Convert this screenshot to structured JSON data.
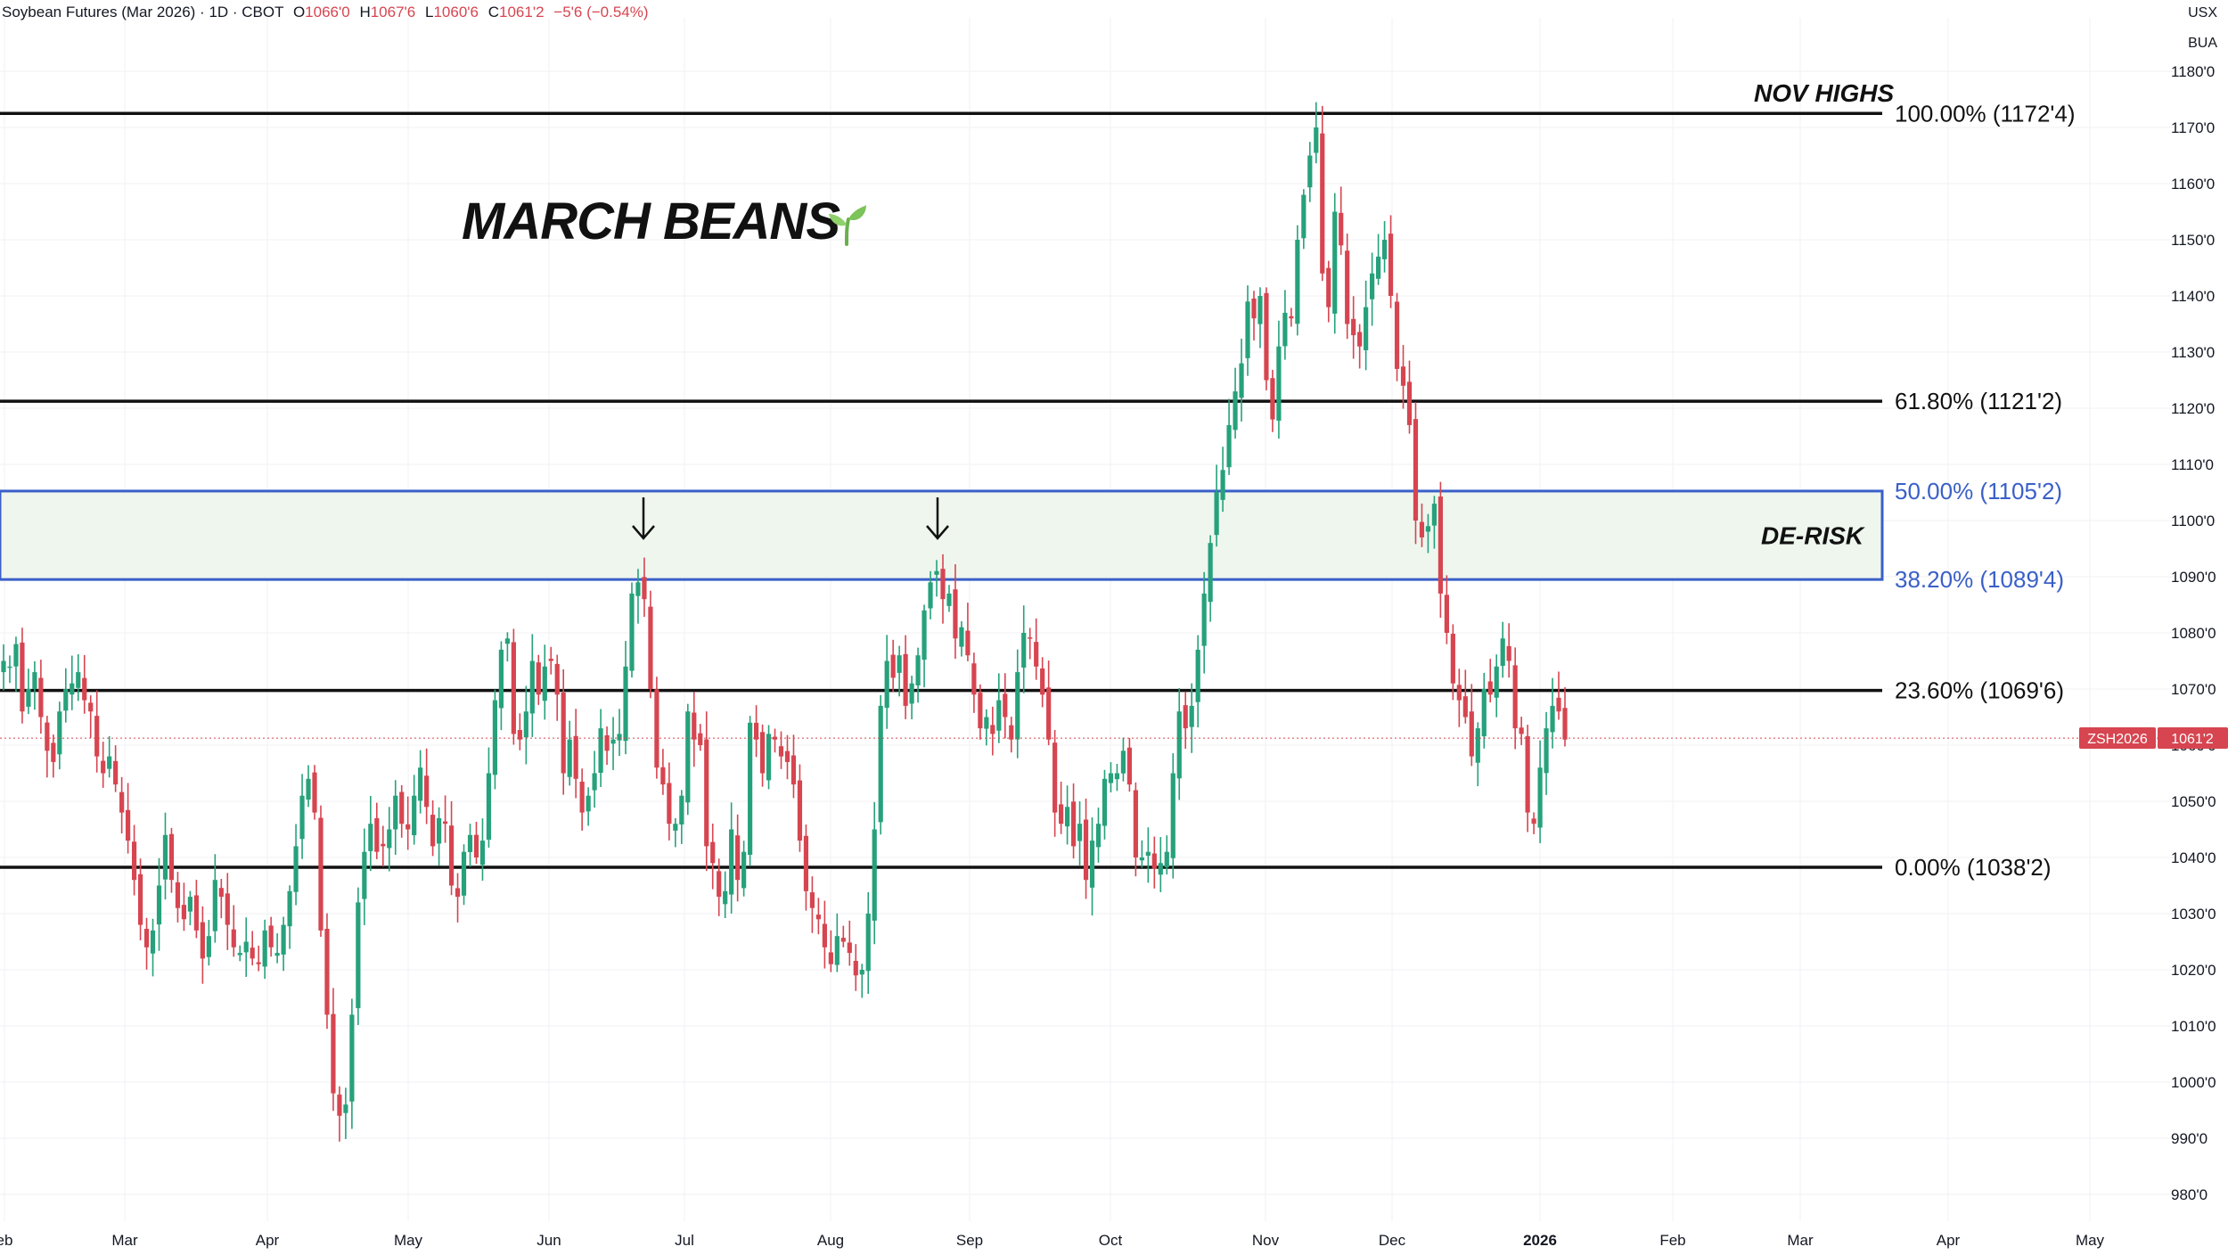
{
  "header": {
    "symbol": "Soybean Futures (Mar 2026) · 1D · CBOT",
    "open_label": "O",
    "open": "1066'0",
    "high_label": "H",
    "high": "1067'6",
    "low_label": "L",
    "low": "1060'6",
    "close_label": "C",
    "close": "1061'2",
    "change": "−5'6 (−0.54%)"
  },
  "currency": "USX",
  "unit": "BUA",
  "title": "MARCH BEANS",
  "price_tag": {
    "symbol": "ZSH2026",
    "value": "1061'2"
  },
  "colors": {
    "up": "#26a17b",
    "down": "#d64550",
    "zone_fill": "#eef6ee",
    "zone_border": "#3a5fc8",
    "fib_line": "#111111",
    "fib_blue_text": "#3a5fc8"
  },
  "chart_data": {
    "type": "candlestick",
    "ylim": [
      975,
      1185
    ],
    "y_ticks": [
      980,
      990,
      1000,
      1010,
      1020,
      1030,
      1040,
      1050,
      1060,
      1070,
      1080,
      1090,
      1100,
      1110,
      1120,
      1130,
      1140,
      1150,
      1160,
      1170,
      1180
    ],
    "y_tick_labels": [
      "980'0",
      "990'0",
      "1000'0",
      "1010'0",
      "1020'0",
      "1030'0",
      "1040'0",
      "1050'0",
      "1060'0",
      "1070'0",
      "1080'0",
      "1090'0",
      "1100'0",
      "1110'0",
      "1120'0",
      "1130'0",
      "1140'0",
      "1150'0",
      "1160'0",
      "1170'0",
      "1180'0"
    ],
    "x_labels": [
      "eb",
      "Mar",
      "Apr",
      "May",
      "Jun",
      "Jul",
      "Aug",
      "Sep",
      "Oct",
      "Nov",
      "Dec",
      "2026",
      "Feb",
      "Mar",
      "Apr",
      "May"
    ],
    "grid": true,
    "current_price": 1061.25,
    "fib_levels": [
      {
        "level": 1172.5,
        "label": "100.00% (1172'4)",
        "style": "black"
      },
      {
        "level": 1121.25,
        "label": "61.80% (1121'2)",
        "style": "black"
      },
      {
        "level": 1105.25,
        "label": "50.00% (1105'2)",
        "style": "blue"
      },
      {
        "level": 1089.5,
        "label": "38.20% (1089'4)",
        "style": "blue"
      },
      {
        "level": 1069.75,
        "label": "23.60% (1069'6)",
        "style": "black"
      },
      {
        "level": 1038.25,
        "label": "0.00% (1038'2)",
        "style": "black"
      }
    ],
    "zone": {
      "from": 1089.5,
      "to": 1105.25,
      "label": "DE-RISK"
    },
    "annotations": [
      {
        "text": "NOV HIGHS"
      }
    ],
    "arrows_at": [
      1094,
      1092
    ],
    "closes": [
      1075,
      1074,
      1078,
      1066,
      1070,
      1073,
      1065,
      1059,
      1057,
      1066,
      1070,
      1071,
      1073,
      1068,
      1066,
      1058,
      1055,
      1058,
      1053,
      1048,
      1043,
      1036,
      1028,
      1024,
      1027,
      1035,
      1044,
      1036,
      1031,
      1029,
      1033,
      1027,
      1022,
      1026,
      1036,
      1033,
      1028,
      1024,
      1023,
      1025,
      1022,
      1021,
      1027,
      1024,
      1023,
      1028,
      1034,
      1042,
      1051,
      1054,
      1048,
      1027,
      1012,
      998,
      994,
      996,
      1012,
      1032,
      1041,
      1046,
      1041,
      1042,
      1045,
      1051,
      1046,
      1045,
      1051,
      1056,
      1049,
      1042,
      1047,
      1046,
      1035,
      1033,
      1041,
      1044,
      1040,
      1043,
      1055,
      1068,
      1077,
      1079,
      1062,
      1061,
      1066,
      1075,
      1069,
      1074,
      1075,
      1069,
      1055,
      1061,
      1054,
      1048,
      1051,
      1055,
      1063,
      1059,
      1061,
      1062,
      1074,
      1087,
      1089,
      1086,
      1070,
      1056,
      1053,
      1046,
      1046,
      1051,
      1066,
      1061,
      1060,
      1042,
      1039,
      1033,
      1034,
      1045,
      1036,
      1041,
      1064,
      1061,
      1055,
      1062,
      1061,
      1058,
      1057,
      1053,
      1043,
      1034,
      1031,
      1029,
      1024,
      1021,
      1026,
      1025,
      1023,
      1019,
      1020,
      1030,
      1045,
      1067,
      1075,
      1072,
      1076,
      1067,
      1071,
      1076,
      1084,
      1089,
      1091,
      1086,
      1087,
      1079,
      1081,
      1076,
      1069,
      1063,
      1065,
      1062,
      1068,
      1065,
      1061,
      1073,
      1080,
      1079,
      1074,
      1069,
      1061,
      1048,
      1046,
      1049,
      1042,
      1046,
      1036,
      1043,
      1046,
      1054,
      1055,
      1055,
      1059,
      1053,
      1040,
      1040,
      1041,
      1038,
      1039,
      1041,
      1055,
      1066,
      1063,
      1067,
      1077,
      1087,
      1096,
      1105,
      1109,
      1117,
      1123,
      1128,
      1139,
      1136,
      1140,
      1125,
      1118,
      1131,
      1137,
      1136,
      1150,
      1158,
      1165,
      1170,
      1144,
      1138,
      1155,
      1149,
      1135,
      1133,
      1131,
      1138,
      1144,
      1147,
      1150,
      1140,
      1127,
      1124,
      1117,
      1100,
      1097,
      1099,
      1103,
      1087,
      1080,
      1071,
      1068,
      1065,
      1058,
      1063,
      1070,
      1069,
      1074,
      1079,
      1075,
      1063,
      1062,
      1048,
      1046,
      1056,
      1063,
      1067,
      1066,
      1061
    ]
  }
}
